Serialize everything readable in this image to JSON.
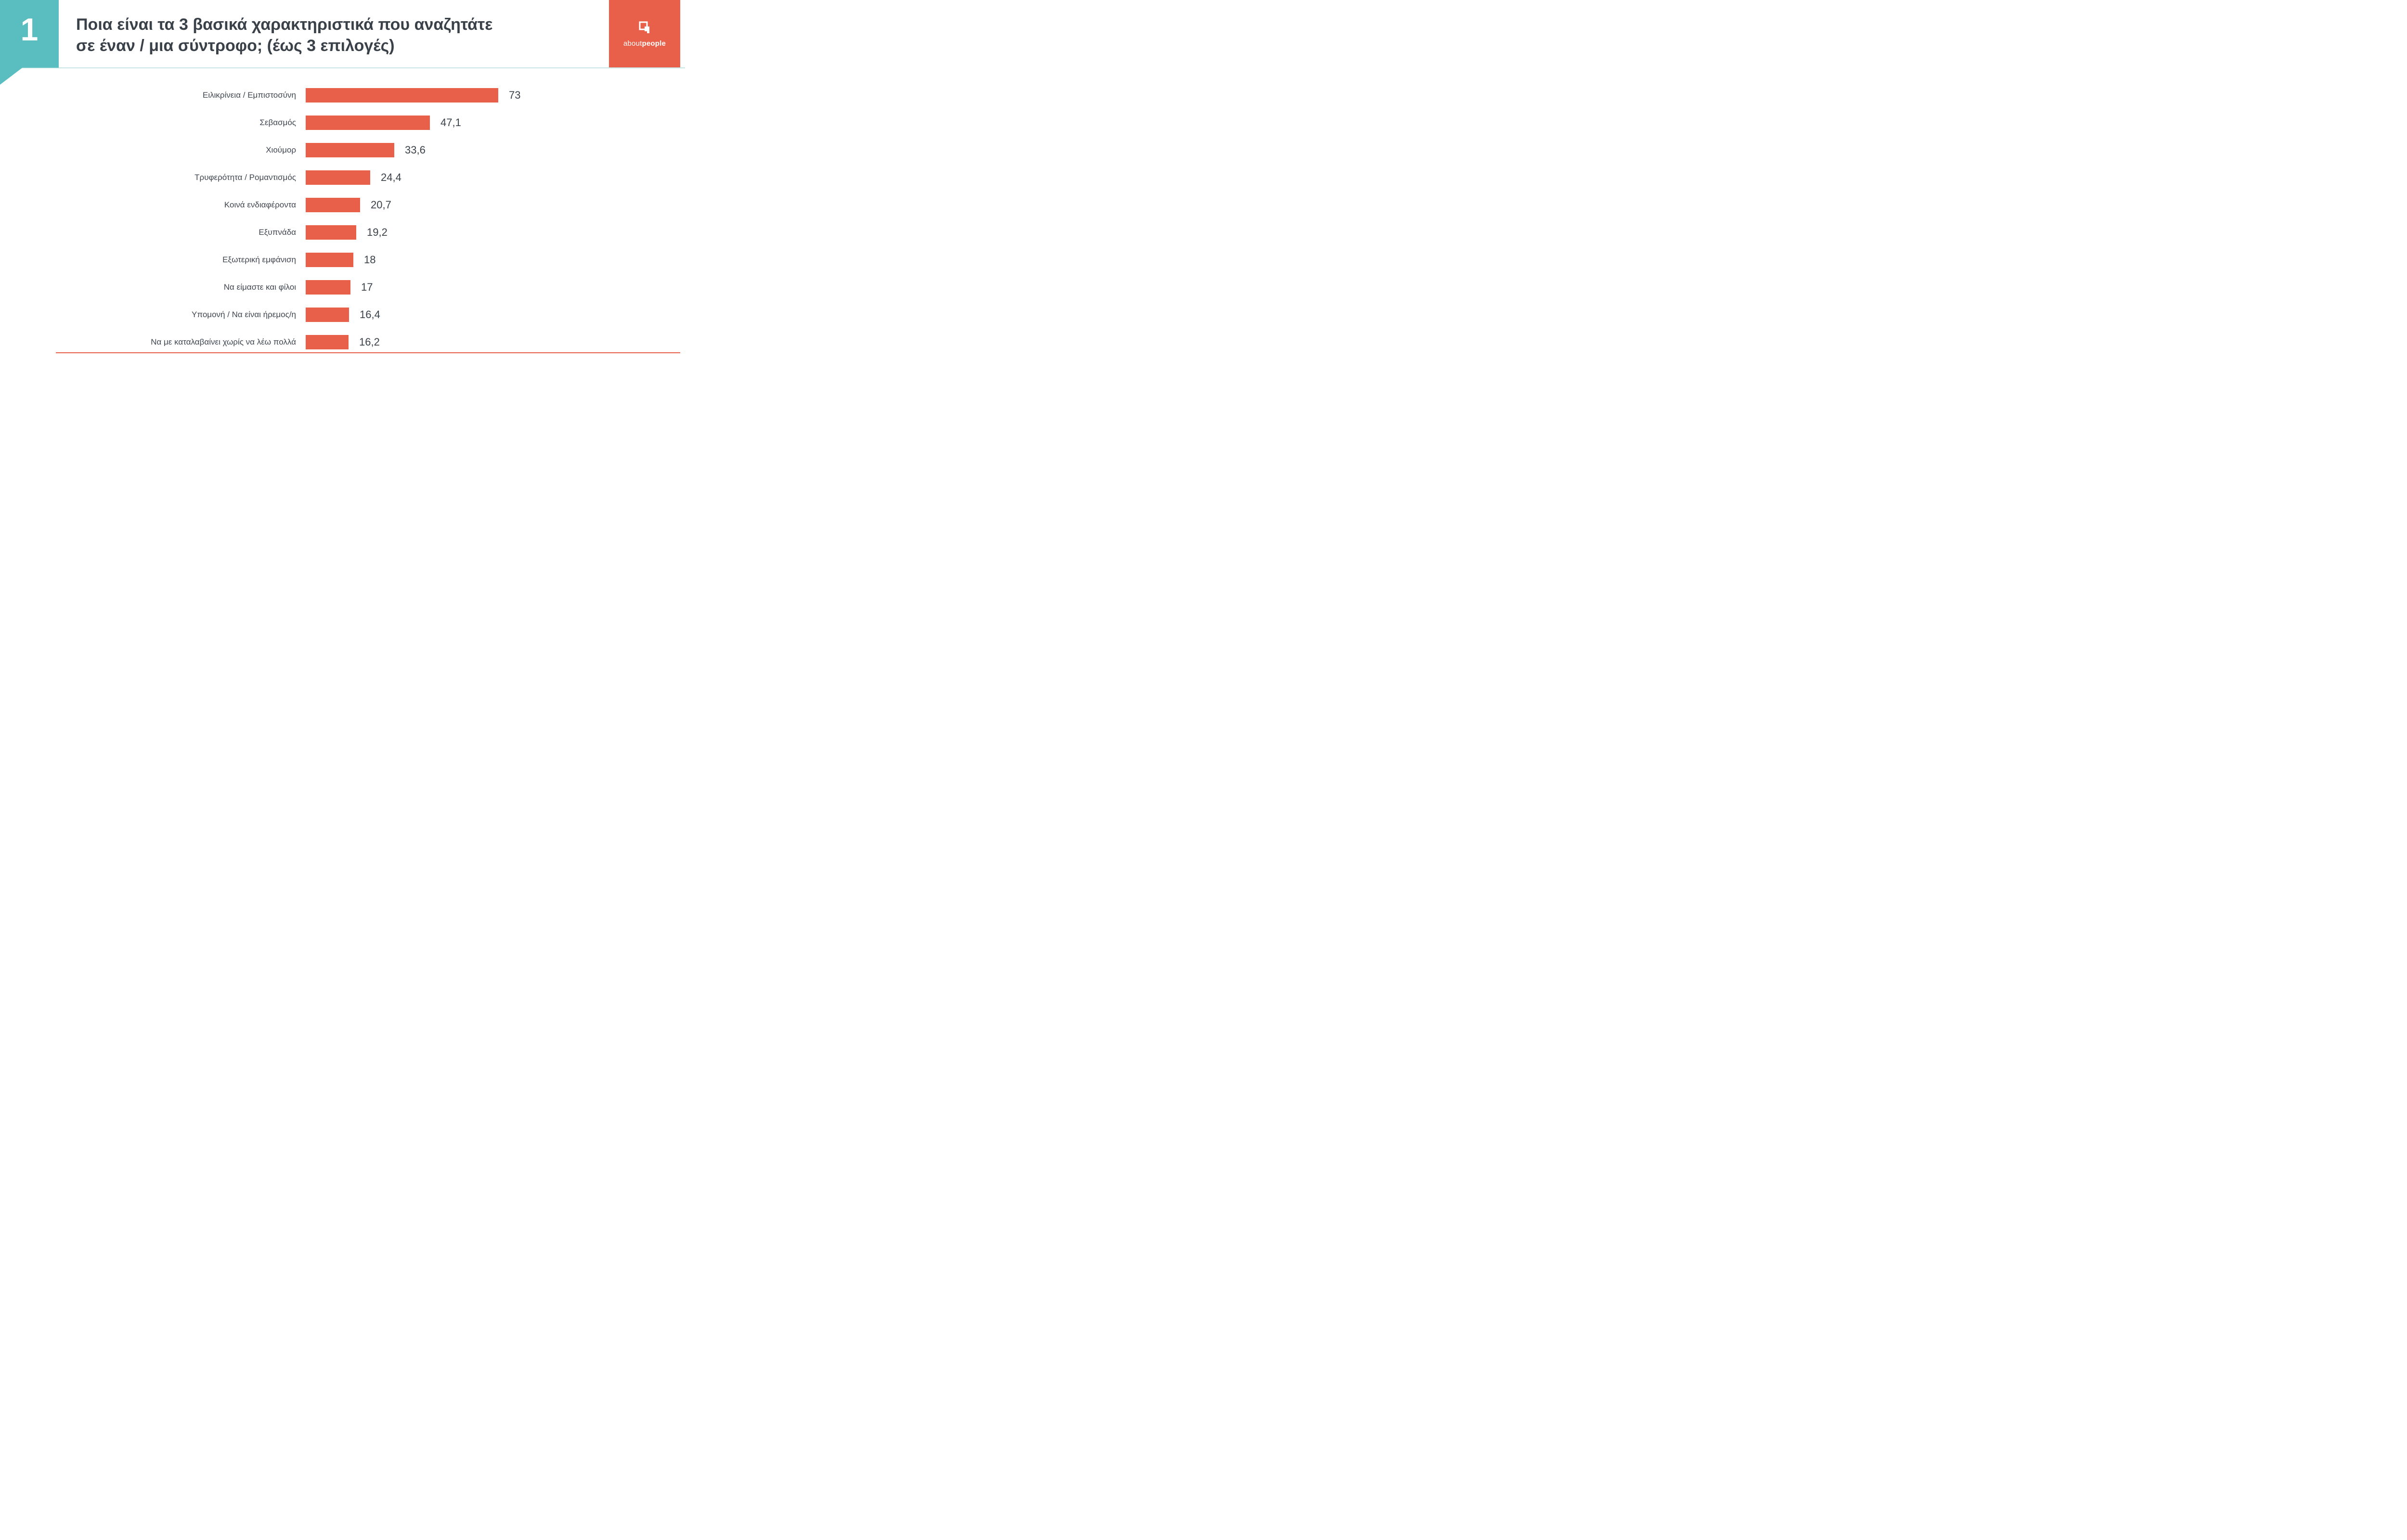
{
  "badge": {
    "number": "1"
  },
  "header": {
    "title_line1": "Ποια είναι τα 3 βασικά χαρακτηριστικά που αναζητάτε",
    "title_line2": "σε έναν / μια σύντροφο; (έως 3 επιλογές)"
  },
  "logo": {
    "brand_first": "about",
    "brand_second": "people",
    "icon": "speech-bubble-icon"
  },
  "colors": {
    "accent_teal": "#5ABDBF",
    "bar_orange": "#E8604A",
    "title_text": "#3A4149",
    "header_rule": "#C9E6E7"
  },
  "chart_data": {
    "type": "bar",
    "orientation": "horizontal",
    "title": "Ποια είναι τα 3 βασικά χαρακτηριστικά που αναζητάτε σε έναν / μια σύντροφο; (έως 3 επιλογές)",
    "categories": [
      "Ειλικρίνεια / Εμπιστοσύνη",
      "Σεβασμός",
      "Χιούμορ",
      "Τρυφερότητα / Ρομαντισμός",
      "Κοινά ενδιαφέροντα",
      "Εξυπνάδα",
      "Εξωτερική εμφάνιση",
      "Να είμαστε και φίλοι",
      "Υπομονή / Να είναι ήρεμος/η",
      "Να με καταλαβαίνει χωρίς να λέω πολλά"
    ],
    "values": [
      73,
      47.1,
      33.6,
      24.4,
      20.7,
      19.2,
      18,
      17,
      16.4,
      16.2
    ],
    "value_labels": [
      "73",
      "47,1",
      "33,6",
      "24,4",
      "20,7",
      "19,2",
      "18",
      "17",
      "16,4",
      "16,2"
    ],
    "xlim": [
      0,
      80
    ],
    "grid": false,
    "legend": "none",
    "bar_color": "#E8604A"
  }
}
